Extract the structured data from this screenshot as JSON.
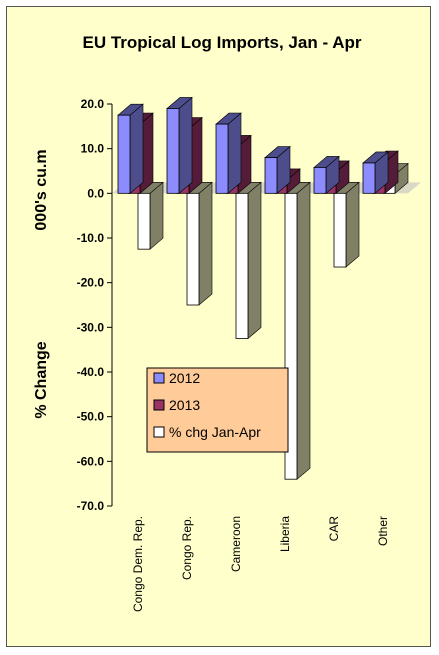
{
  "chart_data": {
    "type": "bar",
    "title": "EU Tropical Log Imports, Jan - Apr",
    "ylabel_top": "000's cu.m",
    "ylabel_bottom": "% Change",
    "ylim": [
      -70,
      20
    ],
    "ytick_step": 10,
    "tick_labels": [
      "20.0",
      "10.0",
      "0.0",
      "-10.0",
      "-20.0",
      "-30.0",
      "-40.0",
      "-50.0",
      "-60.0",
      "-70.0"
    ],
    "categories": [
      "Congo Dem. Rep.",
      "Congo Rep.",
      "Cameroon",
      "Liberia",
      "CAR",
      "Other"
    ],
    "series": [
      {
        "name": "2012",
        "values": [
          17.5,
          19.0,
          15.5,
          8.0,
          5.8,
          6.8
        ],
        "color": "#8c8cff"
      },
      {
        "name": "2013",
        "values": [
          15.5,
          14.5,
          10.5,
          3.0,
          4.8,
          7.0
        ],
        "color": "#993366"
      },
      {
        "name": "% chg Jan-Apr",
        "values": [
          -12.5,
          -25.0,
          -32.5,
          -64.0,
          -16.5,
          4.2
        ],
        "color": "#ffffff"
      }
    ],
    "legend_position": "center-left",
    "legend_bg": "#ffcc99",
    "plot_floor_color": "#c0c0c0",
    "side_shade": "#808066"
  }
}
